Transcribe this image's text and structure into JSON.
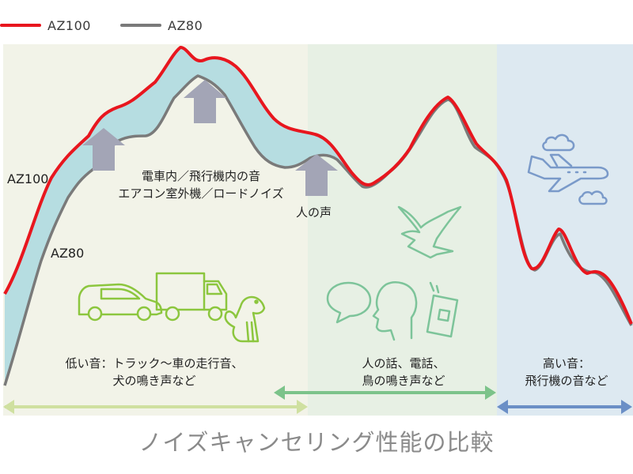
{
  "legend": {
    "az100": "AZ100",
    "az80": "AZ80",
    "az100_color": "#e8161e",
    "az80_color": "#7a7a7a"
  },
  "curve_labels": {
    "az100": "AZ100",
    "az80": "AZ80"
  },
  "annotations": {
    "train_line1": "電車内／飛行機内の音",
    "train_line2": "エアコン室外機／ロードノイズ",
    "voice": "人の声"
  },
  "bands": [
    {
      "line1": "低い音：トラック～車の走行音、",
      "line2": "犬の鳴き声など",
      "fill": "#f2f3e8",
      "arrow_color": "#cfe0a0"
    },
    {
      "line1": "人の話、電話、",
      "line2": "鳥の鳴き声など",
      "fill": "#e7f0e4",
      "arrow_color": "#7cc38a"
    },
    {
      "line1": "高い音：",
      "line2": "飛行機の音など",
      "fill": "#dde9f1",
      "arrow_color": "#6b8fc6"
    }
  ],
  "icons": {
    "band1": [
      "car-icon",
      "truck-icon",
      "dog-icon"
    ],
    "band2": [
      "speech-bubble-icon",
      "person-profile-icon",
      "smartphone-icon",
      "bird-icon"
    ],
    "band3": [
      "airplane-icon",
      "cloud-icon"
    ]
  },
  "colors": {
    "gap_fill": "#b6dde1",
    "up_arrow": "#a3a5b6",
    "icon_green": "#8cc63e",
    "icon_green2": "#7dc49a",
    "icon_blue": "#7a9ac9"
  },
  "footer": {
    "title": "ノイズキャンセリング性能の比較"
  }
}
